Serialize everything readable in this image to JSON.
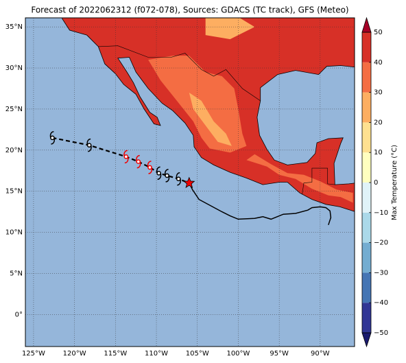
{
  "map": {
    "title": "Forecast of 2022062312 (f072-078), Sources: GDACS (TC track), GFS (Meteo)",
    "lonlim": [
      -126,
      -85.8
    ],
    "latlim": [
      -3.9,
      36.1
    ],
    "xticks": [
      {
        "value": -125,
        "label": "125°W"
      },
      {
        "value": -120,
        "label": "120°W"
      },
      {
        "value": -115,
        "label": "115°W"
      },
      {
        "value": -110,
        "label": "110°W"
      },
      {
        "value": -105,
        "label": "105°W"
      },
      {
        "value": -100,
        "label": "100°W"
      },
      {
        "value": -95,
        "label": "95°W"
      },
      {
        "value": -90,
        "label": "90°W"
      }
    ],
    "yticks": [
      {
        "value": 0,
        "label": "0°"
      },
      {
        "value": 5,
        "label": "5°N"
      },
      {
        "value": 10,
        "label": "10°N"
      },
      {
        "value": 15,
        "label": "15°N"
      },
      {
        "value": 20,
        "label": "20°N"
      },
      {
        "value": 25,
        "label": "25°N"
      },
      {
        "value": 30,
        "label": "30°N"
      },
      {
        "value": 35,
        "label": "35°N"
      }
    ],
    "colorbar": {
      "label": "Max Temperature (°C)",
      "lim": [
        -50,
        50
      ],
      "ticks": [
        {
          "value": -50,
          "label": "−50"
        },
        {
          "value": -40,
          "label": "−40"
        },
        {
          "value": -30,
          "label": "−30"
        },
        {
          "value": -20,
          "label": "−20"
        },
        {
          "value": -10,
          "label": "−10"
        },
        0,
        10,
        20,
        30,
        40,
        50
      ],
      "colors": [
        "#313695",
        "#4575b4",
        "#74add1",
        "#abd9e9",
        "#e0f3f8",
        "#ffffbf",
        "#fee090",
        "#fdae61",
        "#f46d43",
        "#d73027"
      ],
      "under_color": "#1a1a6e",
      "over_color": "#a50026"
    },
    "track": {
      "forecast_lon": [
        -122.7,
        -118.2,
        -113.7,
        -112.2,
        -110.8,
        -109.7,
        -108.7,
        -107.3
      ],
      "forecast_lat": [
        21.5,
        20.6,
        19.2,
        18.6,
        17.9,
        17.2,
        16.9,
        16.5
      ],
      "forecast_colors": [
        "#000",
        "#000",
        "#e00",
        "#e00",
        "#e00",
        "#000",
        "#000",
        "#000"
      ],
      "current_lon": -106.0,
      "current_lat": 16.0,
      "past_lon": [
        -106.0,
        -105.6,
        -104.8,
        -103.5,
        -102.0,
        -101.0,
        -100.0,
        -98.0,
        -97.0,
        -96.0,
        -94.5,
        -93.0,
        -91.5,
        -91.0,
        -90.0,
        -89.3,
        -88.8,
        -88.7,
        -89.0
      ],
      "past_lat": [
        16.0,
        15.2,
        14.0,
        13.3,
        12.5,
        12.0,
        11.6,
        11.7,
        11.9,
        11.6,
        12.2,
        12.3,
        12.7,
        13.0,
        13.1,
        13.0,
        12.6,
        11.8,
        10.9
      ]
    }
  }
}
